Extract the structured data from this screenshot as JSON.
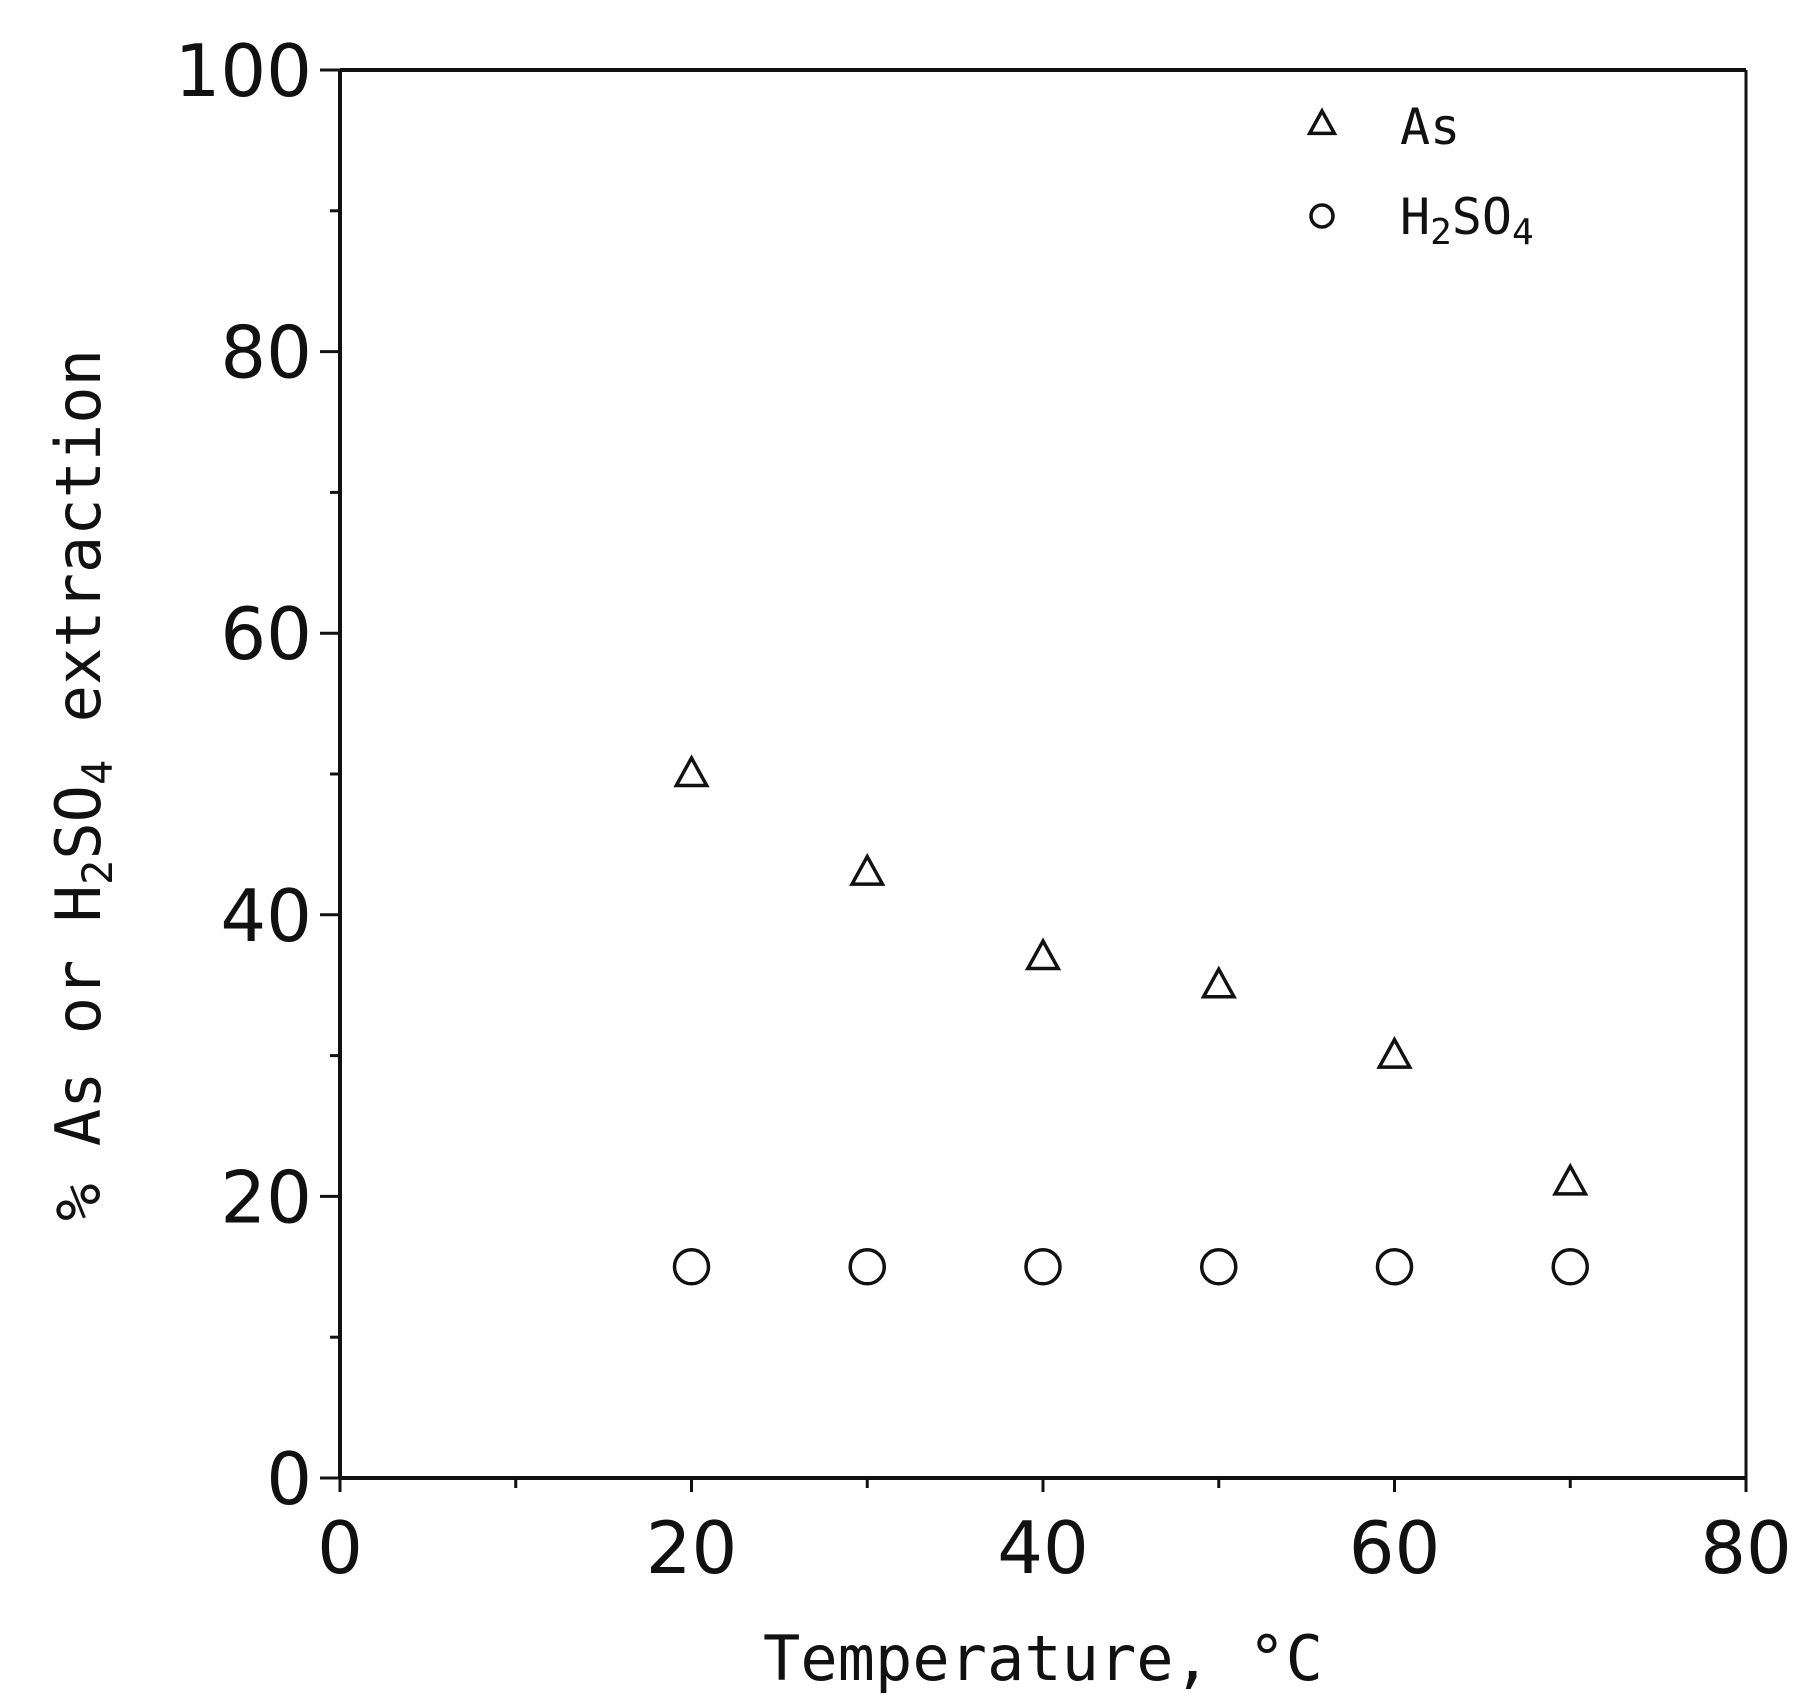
{
  "chart_data": {
    "type": "scatter",
    "title": "",
    "xlabel": "Temperature, °C",
    "ylabel": {
      "before": "% As or H",
      "sub1": "2",
      "mid": "SO",
      "sub2": "4",
      "after": " extraction"
    },
    "xlim": [
      0,
      80
    ],
    "ylim": [
      0,
      100
    ],
    "x_ticks": [
      0,
      20,
      40,
      60,
      80
    ],
    "y_ticks": [
      0,
      20,
      40,
      60,
      80,
      100
    ],
    "x_tick_labels": [
      "0",
      "20",
      "40",
      "60",
      "80"
    ],
    "y_tick_labels": [
      "0",
      "20",
      "40",
      "60",
      "80",
      "100"
    ],
    "x_minor_ticks": [
      10,
      30,
      50,
      70
    ],
    "y_minor_ticks": [
      10,
      30,
      50,
      70,
      90
    ],
    "grid": false,
    "legend_position": "top-right",
    "series": [
      {
        "name": "As",
        "marker": "triangle-open",
        "legend_label": {
          "base": "As",
          "sub": "",
          "tail": ""
        },
        "x": [
          20,
          30,
          40,
          50,
          60,
          70
        ],
        "y": [
          50,
          43,
          37,
          35,
          30,
          21
        ]
      },
      {
        "name": "H2SO4",
        "marker": "circle-open",
        "legend_label": {
          "base": "H",
          "sub": "2",
          "tail": "SO",
          "sub2": "4"
        },
        "x": [
          20,
          30,
          40,
          50,
          60,
          70
        ],
        "y": [
          15,
          15,
          15,
          15,
          15,
          15
        ]
      }
    ],
    "colors": {
      "ink": "#111111",
      "background": "#ffffff"
    }
  }
}
